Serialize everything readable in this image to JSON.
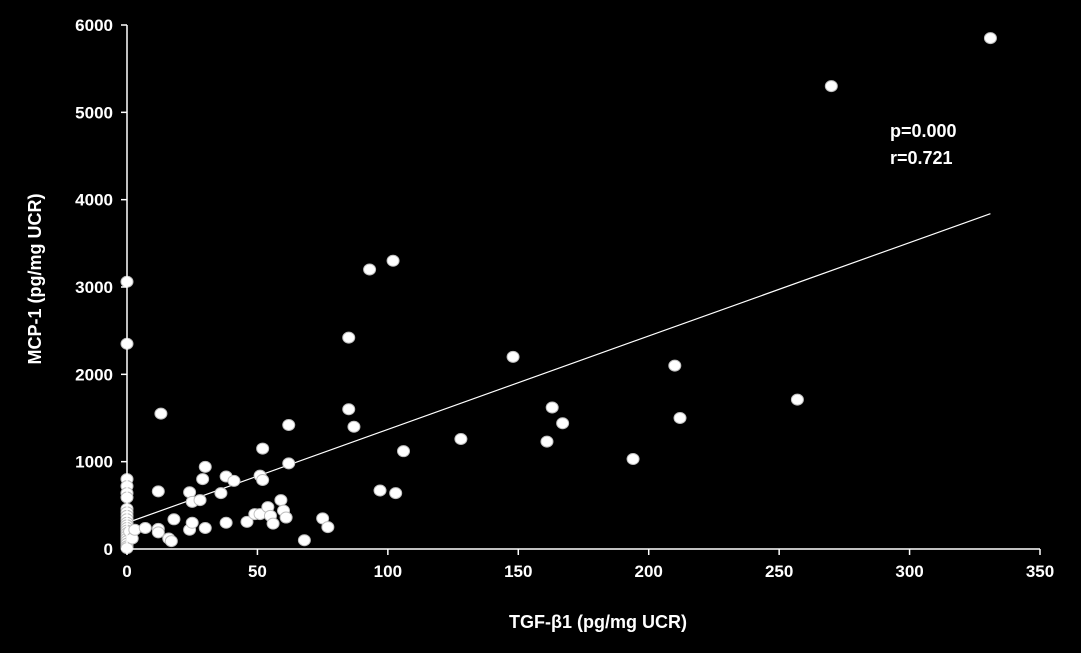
{
  "chart_data": {
    "type": "scatter",
    "xlabel": "TGF-β1 (pg/mg UCR)",
    "ylabel": "MCP-1 (pg/mg UCR)",
    "xlim": [
      0,
      350
    ],
    "ylim": [
      0,
      6000
    ],
    "x_ticks": [
      0,
      50,
      100,
      150,
      200,
      250,
      300,
      350
    ],
    "y_ticks": [
      0,
      1000,
      2000,
      3000,
      4000,
      5000,
      6000
    ],
    "grid": false,
    "legend": "none",
    "marker_color": "#ffffff",
    "background_color": "#000000",
    "annotations": [
      "p=0.000",
      "r=0.721"
    ],
    "trendline": {
      "x": [
        0,
        331
      ],
      "y": [
        300,
        3840
      ]
    },
    "points": [
      {
        "x": 0,
        "y": 3060
      },
      {
        "x": 0,
        "y": 2350
      },
      {
        "x": 0,
        "y": 800
      },
      {
        "x": 0,
        "y": 720
      },
      {
        "x": 0,
        "y": 640
      },
      {
        "x": 0,
        "y": 590
      },
      {
        "x": 0,
        "y": 460
      },
      {
        "x": 0,
        "y": 420
      },
      {
        "x": 0,
        "y": 380
      },
      {
        "x": 0,
        "y": 340
      },
      {
        "x": 0,
        "y": 300
      },
      {
        "x": 0,
        "y": 270
      },
      {
        "x": 0,
        "y": 240
      },
      {
        "x": 0,
        "y": 210
      },
      {
        "x": 0,
        "y": 180
      },
      {
        "x": 0,
        "y": 150
      },
      {
        "x": 0,
        "y": 120
      },
      {
        "x": 0,
        "y": 90
      },
      {
        "x": 0,
        "y": 60
      },
      {
        "x": 0,
        "y": 30
      },
      {
        "x": 0,
        "y": 10
      },
      {
        "x": 1,
        "y": 200
      },
      {
        "x": 2,
        "y": 120
      },
      {
        "x": 3,
        "y": 220
      },
      {
        "x": 7,
        "y": 240
      },
      {
        "x": 12,
        "y": 660
      },
      {
        "x": 12,
        "y": 230
      },
      {
        "x": 12,
        "y": 190
      },
      {
        "x": 13,
        "y": 1550
      },
      {
        "x": 16,
        "y": 120
      },
      {
        "x": 17,
        "y": 90
      },
      {
        "x": 18,
        "y": 340
      },
      {
        "x": 24,
        "y": 650
      },
      {
        "x": 24,
        "y": 220
      },
      {
        "x": 25,
        "y": 540
      },
      {
        "x": 25,
        "y": 300
      },
      {
        "x": 28,
        "y": 560
      },
      {
        "x": 29,
        "y": 800
      },
      {
        "x": 30,
        "y": 940
      },
      {
        "x": 30,
        "y": 240
      },
      {
        "x": 36,
        "y": 640
      },
      {
        "x": 38,
        "y": 830
      },
      {
        "x": 38,
        "y": 300
      },
      {
        "x": 41,
        "y": 780
      },
      {
        "x": 46,
        "y": 310
      },
      {
        "x": 49,
        "y": 400
      },
      {
        "x": 51,
        "y": 400
      },
      {
        "x": 51,
        "y": 840
      },
      {
        "x": 52,
        "y": 790
      },
      {
        "x": 52,
        "y": 1150
      },
      {
        "x": 54,
        "y": 480
      },
      {
        "x": 55,
        "y": 380
      },
      {
        "x": 56,
        "y": 290
      },
      {
        "x": 59,
        "y": 560
      },
      {
        "x": 60,
        "y": 440
      },
      {
        "x": 61,
        "y": 360
      },
      {
        "x": 62,
        "y": 980
      },
      {
        "x": 62,
        "y": 1420
      },
      {
        "x": 68,
        "y": 100
      },
      {
        "x": 75,
        "y": 350
      },
      {
        "x": 77,
        "y": 250
      },
      {
        "x": 85,
        "y": 1600
      },
      {
        "x": 85,
        "y": 2420
      },
      {
        "x": 87,
        "y": 1400
      },
      {
        "x": 93,
        "y": 3200
      },
      {
        "x": 97,
        "y": 670
      },
      {
        "x": 102,
        "y": 3300
      },
      {
        "x": 103,
        "y": 640
      },
      {
        "x": 106,
        "y": 1120
      },
      {
        "x": 128,
        "y": 1260
      },
      {
        "x": 148,
        "y": 2200
      },
      {
        "x": 161,
        "y": 1230
      },
      {
        "x": 163,
        "y": 1620
      },
      {
        "x": 167,
        "y": 1440
      },
      {
        "x": 194,
        "y": 1030
      },
      {
        "x": 210,
        "y": 2100
      },
      {
        "x": 212,
        "y": 1500
      },
      {
        "x": 257,
        "y": 1710
      },
      {
        "x": 270,
        "y": 5300
      },
      {
        "x": 331,
        "y": 5850
      }
    ]
  }
}
